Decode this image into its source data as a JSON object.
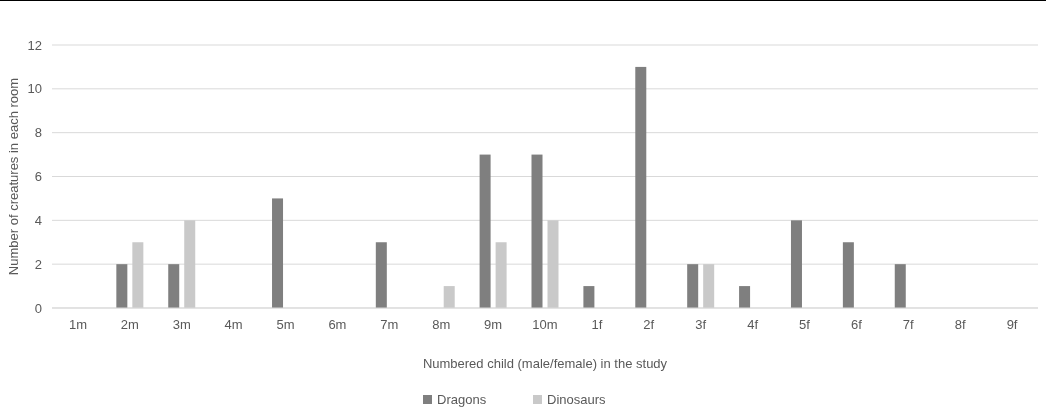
{
  "chart_data": {
    "type": "bar",
    "xlabel": "Numbered child (male/female) in the study",
    "ylabel": "Number of creatures in each room",
    "categories": [
      "1m",
      "2m",
      "3m",
      "4m",
      "5m",
      "6m",
      "7m",
      "8m",
      "9m",
      "10m",
      "1f",
      "2f",
      "3f",
      "4f",
      "5f",
      "6f",
      "7f",
      "8f",
      "9f"
    ],
    "series": [
      {
        "name": "Dragons",
        "color": "#7f7f7f",
        "values": [
          0,
          2,
          2,
          0,
          5,
          0,
          3,
          0,
          7,
          7,
          1,
          11,
          2,
          1,
          4,
          3,
          2,
          0,
          0
        ]
      },
      {
        "name": "Dinosaurs",
        "color": "#c9c9c9",
        "values": [
          0,
          3,
          4,
          0,
          0,
          0,
          0,
          1,
          3,
          4,
          0,
          0,
          2,
          0,
          0,
          0,
          0,
          0,
          0
        ]
      }
    ],
    "ylim": [
      0,
      12
    ],
    "yticks": [
      0,
      2,
      4,
      6,
      8,
      10,
      12
    ],
    "grid": "y",
    "legend": "bottom"
  }
}
